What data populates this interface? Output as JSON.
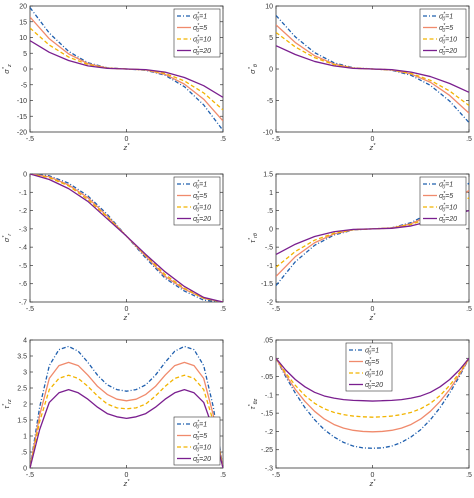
{
  "colors": {
    "axis": "#333333",
    "legend_border": "#333333"
  },
  "series_styles": [
    {
      "color": "#1f5fae",
      "dash": "4 2 1 2",
      "width": 1.3
    },
    {
      "color": "#f08a6c",
      "dash": "",
      "width": 1.3
    },
    {
      "color": "#f2b400",
      "dash": "4 2.5",
      "width": 1.3
    },
    {
      "color": "#7a1f8f",
      "dash": "",
      "width": 1.3
    }
  ],
  "chart_data": [
    {
      "type": "line",
      "ylabel": "σz*",
      "xlabel": "z*",
      "xlim": [
        -0.5,
        0.5
      ],
      "ylim": [
        -20,
        20
      ],
      "xticks": [
        -0.5,
        0,
        0.5
      ],
      "yticks": [
        -20,
        -15,
        -10,
        -5,
        0,
        5,
        10,
        15,
        20
      ],
      "legend": "top-right",
      "series": [
        {
          "name": "σ0*=1",
          "x": [
            -0.5,
            -0.4,
            -0.3,
            -0.2,
            -0.1,
            0,
            0.1,
            0.2,
            0.3,
            0.4,
            0.5
          ],
          "values": [
            19.5,
            11.4,
            5.6,
            2.0,
            0.4,
            0,
            -0.4,
            -2.0,
            -5.6,
            -11.4,
            -19.5
          ]
        },
        {
          "name": "σ0*=5",
          "x": [
            -0.5,
            -0.4,
            -0.3,
            -0.2,
            -0.1,
            0,
            0.1,
            0.2,
            0.3,
            0.4,
            0.5
          ],
          "values": [
            16.5,
            9.6,
            4.8,
            1.7,
            0.3,
            0,
            -0.3,
            -1.7,
            -4.8,
            -9.6,
            -16.5
          ]
        },
        {
          "name": "σ0*=10",
          "x": [
            -0.5,
            -0.4,
            -0.3,
            -0.2,
            -0.1,
            0,
            0.1,
            0.2,
            0.3,
            0.4,
            0.5
          ],
          "values": [
            13,
            7.6,
            3.8,
            1.4,
            0.25,
            0,
            -0.25,
            -1.4,
            -3.8,
            -7.6,
            -13
          ]
        },
        {
          "name": "σ0*=20",
          "x": [
            -0.5,
            -0.4,
            -0.3,
            -0.2,
            -0.1,
            0,
            0.1,
            0.2,
            0.3,
            0.4,
            0.5
          ],
          "values": [
            9,
            5.3,
            2.7,
            1.0,
            0.2,
            0,
            -0.2,
            -1.0,
            -2.7,
            -5.3,
            -9
          ]
        }
      ]
    },
    {
      "type": "line",
      "ylabel": "σθ*",
      "xlabel": "z*",
      "xlim": [
        -0.5,
        0.5
      ],
      "ylim": [
        -10,
        10
      ],
      "xticks": [
        -0.5,
        0,
        0.5
      ],
      "yticks": [
        -10,
        -5,
        0,
        5,
        10
      ],
      "legend": "top-right",
      "series": [
        {
          "name": "σ0*=1",
          "x": [
            -0.5,
            -0.4,
            -0.3,
            -0.2,
            -0.1,
            0,
            0.1,
            0.2,
            0.3,
            0.4,
            0.5
          ],
          "values": [
            8.5,
            5.1,
            2.6,
            1.0,
            0.2,
            0,
            -0.2,
            -1.0,
            -2.6,
            -5.1,
            -8.5
          ]
        },
        {
          "name": "σ0*=5",
          "x": [
            -0.5,
            -0.4,
            -0.3,
            -0.2,
            -0.1,
            0,
            0.1,
            0.2,
            0.3,
            0.4,
            0.5
          ],
          "values": [
            7,
            4.2,
            2.1,
            0.8,
            0.15,
            0,
            -0.15,
            -0.8,
            -2.1,
            -4.2,
            -7
          ]
        },
        {
          "name": "σ0*=10",
          "x": [
            -0.5,
            -0.4,
            -0.3,
            -0.2,
            -0.1,
            0,
            0.1,
            0.2,
            0.3,
            0.4,
            0.5
          ],
          "values": [
            5.8,
            3.5,
            1.8,
            0.7,
            0.12,
            0,
            -0.12,
            -0.7,
            -1.8,
            -3.5,
            -5.8
          ]
        },
        {
          "name": "σ0*=20",
          "x": [
            -0.5,
            -0.4,
            -0.3,
            -0.2,
            -0.1,
            0,
            0.1,
            0.2,
            0.3,
            0.4,
            0.5
          ],
          "values": [
            3.7,
            2.3,
            1.2,
            0.5,
            0.1,
            0,
            -0.1,
            -0.5,
            -1.2,
            -2.3,
            -3.7
          ]
        }
      ]
    },
    {
      "type": "line",
      "ylabel": "σr*",
      "xlabel": "z*",
      "xlim": [
        -0.5,
        0.5
      ],
      "ylim": [
        -0.7,
        0
      ],
      "xticks": [
        -0.5,
        0,
        0.5
      ],
      "yticks": [
        -0.7,
        -0.6,
        -0.5,
        -0.4,
        -0.3,
        -0.2,
        -0.1,
        0
      ],
      "legend": "top-right",
      "series": [
        {
          "name": "σ0*=1",
          "x": [
            -0.5,
            -0.4,
            -0.3,
            -0.2,
            -0.1,
            0,
            0.1,
            0.2,
            0.3,
            0.4,
            0.5
          ],
          "values": [
            0,
            -0.01,
            -0.05,
            -0.12,
            -0.22,
            -0.34,
            -0.46,
            -0.57,
            -0.64,
            -0.69,
            -0.7
          ]
        },
        {
          "name": "σ0*=5",
          "x": [
            -0.5,
            -0.4,
            -0.3,
            -0.2,
            -0.1,
            0,
            0.1,
            0.2,
            0.3,
            0.4,
            0.5
          ],
          "values": [
            0,
            -0.015,
            -0.06,
            -0.13,
            -0.23,
            -0.34,
            -0.45,
            -0.56,
            -0.63,
            -0.68,
            -0.7
          ]
        },
        {
          "name": "σ0*=10",
          "x": [
            -0.5,
            -0.4,
            -0.3,
            -0.2,
            -0.1,
            0,
            0.1,
            0.2,
            0.3,
            0.4,
            0.5
          ],
          "values": [
            0,
            -0.02,
            -0.065,
            -0.14,
            -0.235,
            -0.34,
            -0.445,
            -0.55,
            -0.625,
            -0.68,
            -0.7
          ]
        },
        {
          "name": "σ0*=20",
          "x": [
            -0.5,
            -0.4,
            -0.3,
            -0.2,
            -0.1,
            0,
            0.1,
            0.2,
            0.3,
            0.4,
            0.5
          ],
          "values": [
            0,
            -0.03,
            -0.08,
            -0.15,
            -0.245,
            -0.34,
            -0.44,
            -0.535,
            -0.615,
            -0.675,
            -0.7
          ]
        }
      ]
    },
    {
      "type": "line",
      "ylabel": "τrθ*",
      "xlabel": "z*",
      "xlim": [
        -0.5,
        0.5
      ],
      "ylim": [
        -2,
        1.5
      ],
      "xticks": [
        -0.5,
        0,
        0.5
      ],
      "yticks": [
        -2,
        -1.5,
        -1,
        -0.5,
        0,
        0.5,
        1,
        1.5
      ],
      "legend": "top-right",
      "series": [
        {
          "name": "σ0*=1",
          "x": [
            -0.5,
            -0.4,
            -0.3,
            -0.2,
            -0.1,
            0,
            0.1,
            0.2,
            0.3,
            0.4,
            0.5
          ],
          "values": [
            -1.55,
            -0.9,
            -0.45,
            -0.17,
            -0.03,
            0,
            0.03,
            0.17,
            0.45,
            0.85,
            1.25
          ]
        },
        {
          "name": "σ0*=5",
          "x": [
            -0.5,
            -0.4,
            -0.3,
            -0.2,
            -0.1,
            0,
            0.1,
            0.2,
            0.3,
            0.4,
            0.5
          ],
          "values": [
            -1.3,
            -0.76,
            -0.38,
            -0.14,
            -0.025,
            0,
            0.025,
            0.14,
            0.38,
            0.7,
            1.05
          ]
        },
        {
          "name": "σ0*=10",
          "x": [
            -0.5,
            -0.4,
            -0.3,
            -0.2,
            -0.1,
            0,
            0.1,
            0.2,
            0.3,
            0.4,
            0.5
          ],
          "values": [
            -1.05,
            -0.62,
            -0.31,
            -0.12,
            -0.02,
            0,
            0.02,
            0.12,
            0.31,
            0.56,
            0.85
          ]
        },
        {
          "name": "σ0*=20",
          "x": [
            -0.5,
            -0.4,
            -0.3,
            -0.2,
            -0.1,
            0,
            0.1,
            0.2,
            0.3,
            0.4,
            0.5
          ],
          "values": [
            -0.7,
            -0.42,
            -0.21,
            -0.08,
            -0.015,
            0,
            0.015,
            0.08,
            0.21,
            0.36,
            0.5
          ]
        }
      ]
    },
    {
      "type": "line",
      "ylabel": "τrz*",
      "xlabel": "z*",
      "xlim": [
        -0.5,
        0.5
      ],
      "ylim": [
        0,
        4
      ],
      "xticks": [
        -0.5,
        0,
        0.5
      ],
      "yticks": [
        0,
        0.5,
        1,
        1.5,
        2,
        2.5,
        3,
        3.5,
        4
      ],
      "legend": "bottom-right",
      "series": [
        {
          "name": "σ0*=1",
          "x": [
            -0.5,
            -0.45,
            -0.4,
            -0.35,
            -0.3,
            -0.25,
            -0.2,
            -0.15,
            -0.1,
            -0.05,
            0,
            0.05,
            0.1,
            0.15,
            0.2,
            0.25,
            0.3,
            0.35,
            0.4,
            0.45,
            0.5
          ],
          "values": [
            0,
            1.9,
            3.2,
            3.7,
            3.8,
            3.65,
            3.3,
            2.9,
            2.6,
            2.45,
            2.4,
            2.45,
            2.6,
            2.9,
            3.3,
            3.65,
            3.8,
            3.7,
            3.2,
            1.9,
            0
          ]
        },
        {
          "name": "σ0*=5",
          "x": [
            -0.5,
            -0.45,
            -0.4,
            -0.35,
            -0.3,
            -0.25,
            -0.2,
            -0.15,
            -0.1,
            -0.05,
            0,
            0.05,
            0.1,
            0.15,
            0.2,
            0.25,
            0.3,
            0.35,
            0.4,
            0.45,
            0.5
          ],
          "values": [
            0,
            1.65,
            2.8,
            3.2,
            3.3,
            3.2,
            2.9,
            2.55,
            2.3,
            2.15,
            2.1,
            2.15,
            2.3,
            2.55,
            2.9,
            3.2,
            3.3,
            3.2,
            2.8,
            1.65,
            0
          ]
        },
        {
          "name": "σ0*=10",
          "x": [
            -0.5,
            -0.45,
            -0.4,
            -0.35,
            -0.3,
            -0.25,
            -0.2,
            -0.15,
            -0.1,
            -0.05,
            0,
            0.05,
            0.1,
            0.15,
            0.2,
            0.25,
            0.3,
            0.35,
            0.4,
            0.45,
            0.5
          ],
          "values": [
            0,
            1.45,
            2.45,
            2.8,
            2.9,
            2.8,
            2.55,
            2.25,
            2.0,
            1.88,
            1.85,
            1.88,
            2.0,
            2.25,
            2.55,
            2.8,
            2.9,
            2.8,
            2.45,
            1.45,
            0
          ]
        },
        {
          "name": "σ0*=20",
          "x": [
            -0.5,
            -0.45,
            -0.4,
            -0.35,
            -0.3,
            -0.25,
            -0.2,
            -0.15,
            -0.1,
            -0.05,
            0,
            0.05,
            0.1,
            0.15,
            0.2,
            0.25,
            0.3,
            0.35,
            0.4,
            0.45,
            0.5
          ],
          "values": [
            0,
            1.2,
            2.05,
            2.35,
            2.45,
            2.35,
            2.15,
            1.9,
            1.7,
            1.6,
            1.55,
            1.6,
            1.7,
            1.9,
            2.15,
            2.35,
            2.45,
            2.35,
            2.05,
            1.2,
            0
          ]
        }
      ]
    },
    {
      "type": "line",
      "ylabel": "τθz*",
      "xlabel": "z*",
      "xlim": [
        -0.5,
        0.5
      ],
      "ylim": [
        -0.3,
        0.05
      ],
      "xticks": [
        -0.5,
        0,
        0.5
      ],
      "yticks": [
        -0.3,
        -0.25,
        -0.2,
        -0.15,
        -0.1,
        -0.05,
        0,
        0.05
      ],
      "legend": "top-left",
      "series": [
        {
          "name": "σ0*=1",
          "x": [
            -0.5,
            -0.45,
            -0.4,
            -0.35,
            -0.3,
            -0.25,
            -0.2,
            -0.15,
            -0.1,
            -0.05,
            0,
            0.05,
            0.1,
            0.15,
            0.2,
            0.25,
            0.3,
            0.35,
            0.4,
            0.45,
            0.5
          ],
          "values": [
            0,
            -0.05,
            -0.095,
            -0.135,
            -0.168,
            -0.195,
            -0.215,
            -0.23,
            -0.24,
            -0.245,
            -0.246,
            -0.245,
            -0.24,
            -0.23,
            -0.215,
            -0.195,
            -0.168,
            -0.135,
            -0.095,
            -0.05,
            0
          ]
        },
        {
          "name": "σ0*=5",
          "x": [
            -0.5,
            -0.45,
            -0.4,
            -0.35,
            -0.3,
            -0.25,
            -0.2,
            -0.15,
            -0.1,
            -0.05,
            0,
            0.05,
            0.1,
            0.15,
            0.2,
            0.25,
            0.3,
            0.35,
            0.4,
            0.45,
            0.5
          ],
          "values": [
            0,
            -0.045,
            -0.085,
            -0.118,
            -0.145,
            -0.166,
            -0.181,
            -0.191,
            -0.197,
            -0.2,
            -0.201,
            -0.2,
            -0.197,
            -0.191,
            -0.181,
            -0.166,
            -0.145,
            -0.118,
            -0.085,
            -0.045,
            0
          ]
        },
        {
          "name": "σ0*=10",
          "x": [
            -0.5,
            -0.45,
            -0.4,
            -0.35,
            -0.3,
            -0.25,
            -0.2,
            -0.15,
            -0.1,
            -0.05,
            0,
            0.05,
            0.1,
            0.15,
            0.2,
            0.25,
            0.3,
            0.35,
            0.4,
            0.45,
            0.5
          ],
          "values": [
            0,
            -0.04,
            -0.074,
            -0.102,
            -0.123,
            -0.138,
            -0.148,
            -0.154,
            -0.158,
            -0.16,
            -0.161,
            -0.16,
            -0.158,
            -0.154,
            -0.148,
            -0.138,
            -0.123,
            -0.102,
            -0.074,
            -0.04,
            0
          ]
        },
        {
          "name": "σ0*=20",
          "x": [
            -0.5,
            -0.45,
            -0.4,
            -0.35,
            -0.3,
            -0.25,
            -0.2,
            -0.15,
            -0.1,
            -0.05,
            0,
            0.05,
            0.1,
            0.15,
            0.2,
            0.25,
            0.3,
            0.35,
            0.4,
            0.45,
            0.5
          ],
          "values": [
            0,
            -0.032,
            -0.058,
            -0.078,
            -0.093,
            -0.103,
            -0.109,
            -0.113,
            -0.115,
            -0.116,
            -0.117,
            -0.116,
            -0.115,
            -0.113,
            -0.109,
            -0.103,
            -0.093,
            -0.078,
            -0.058,
            -0.032,
            0
          ]
        }
      ]
    }
  ]
}
